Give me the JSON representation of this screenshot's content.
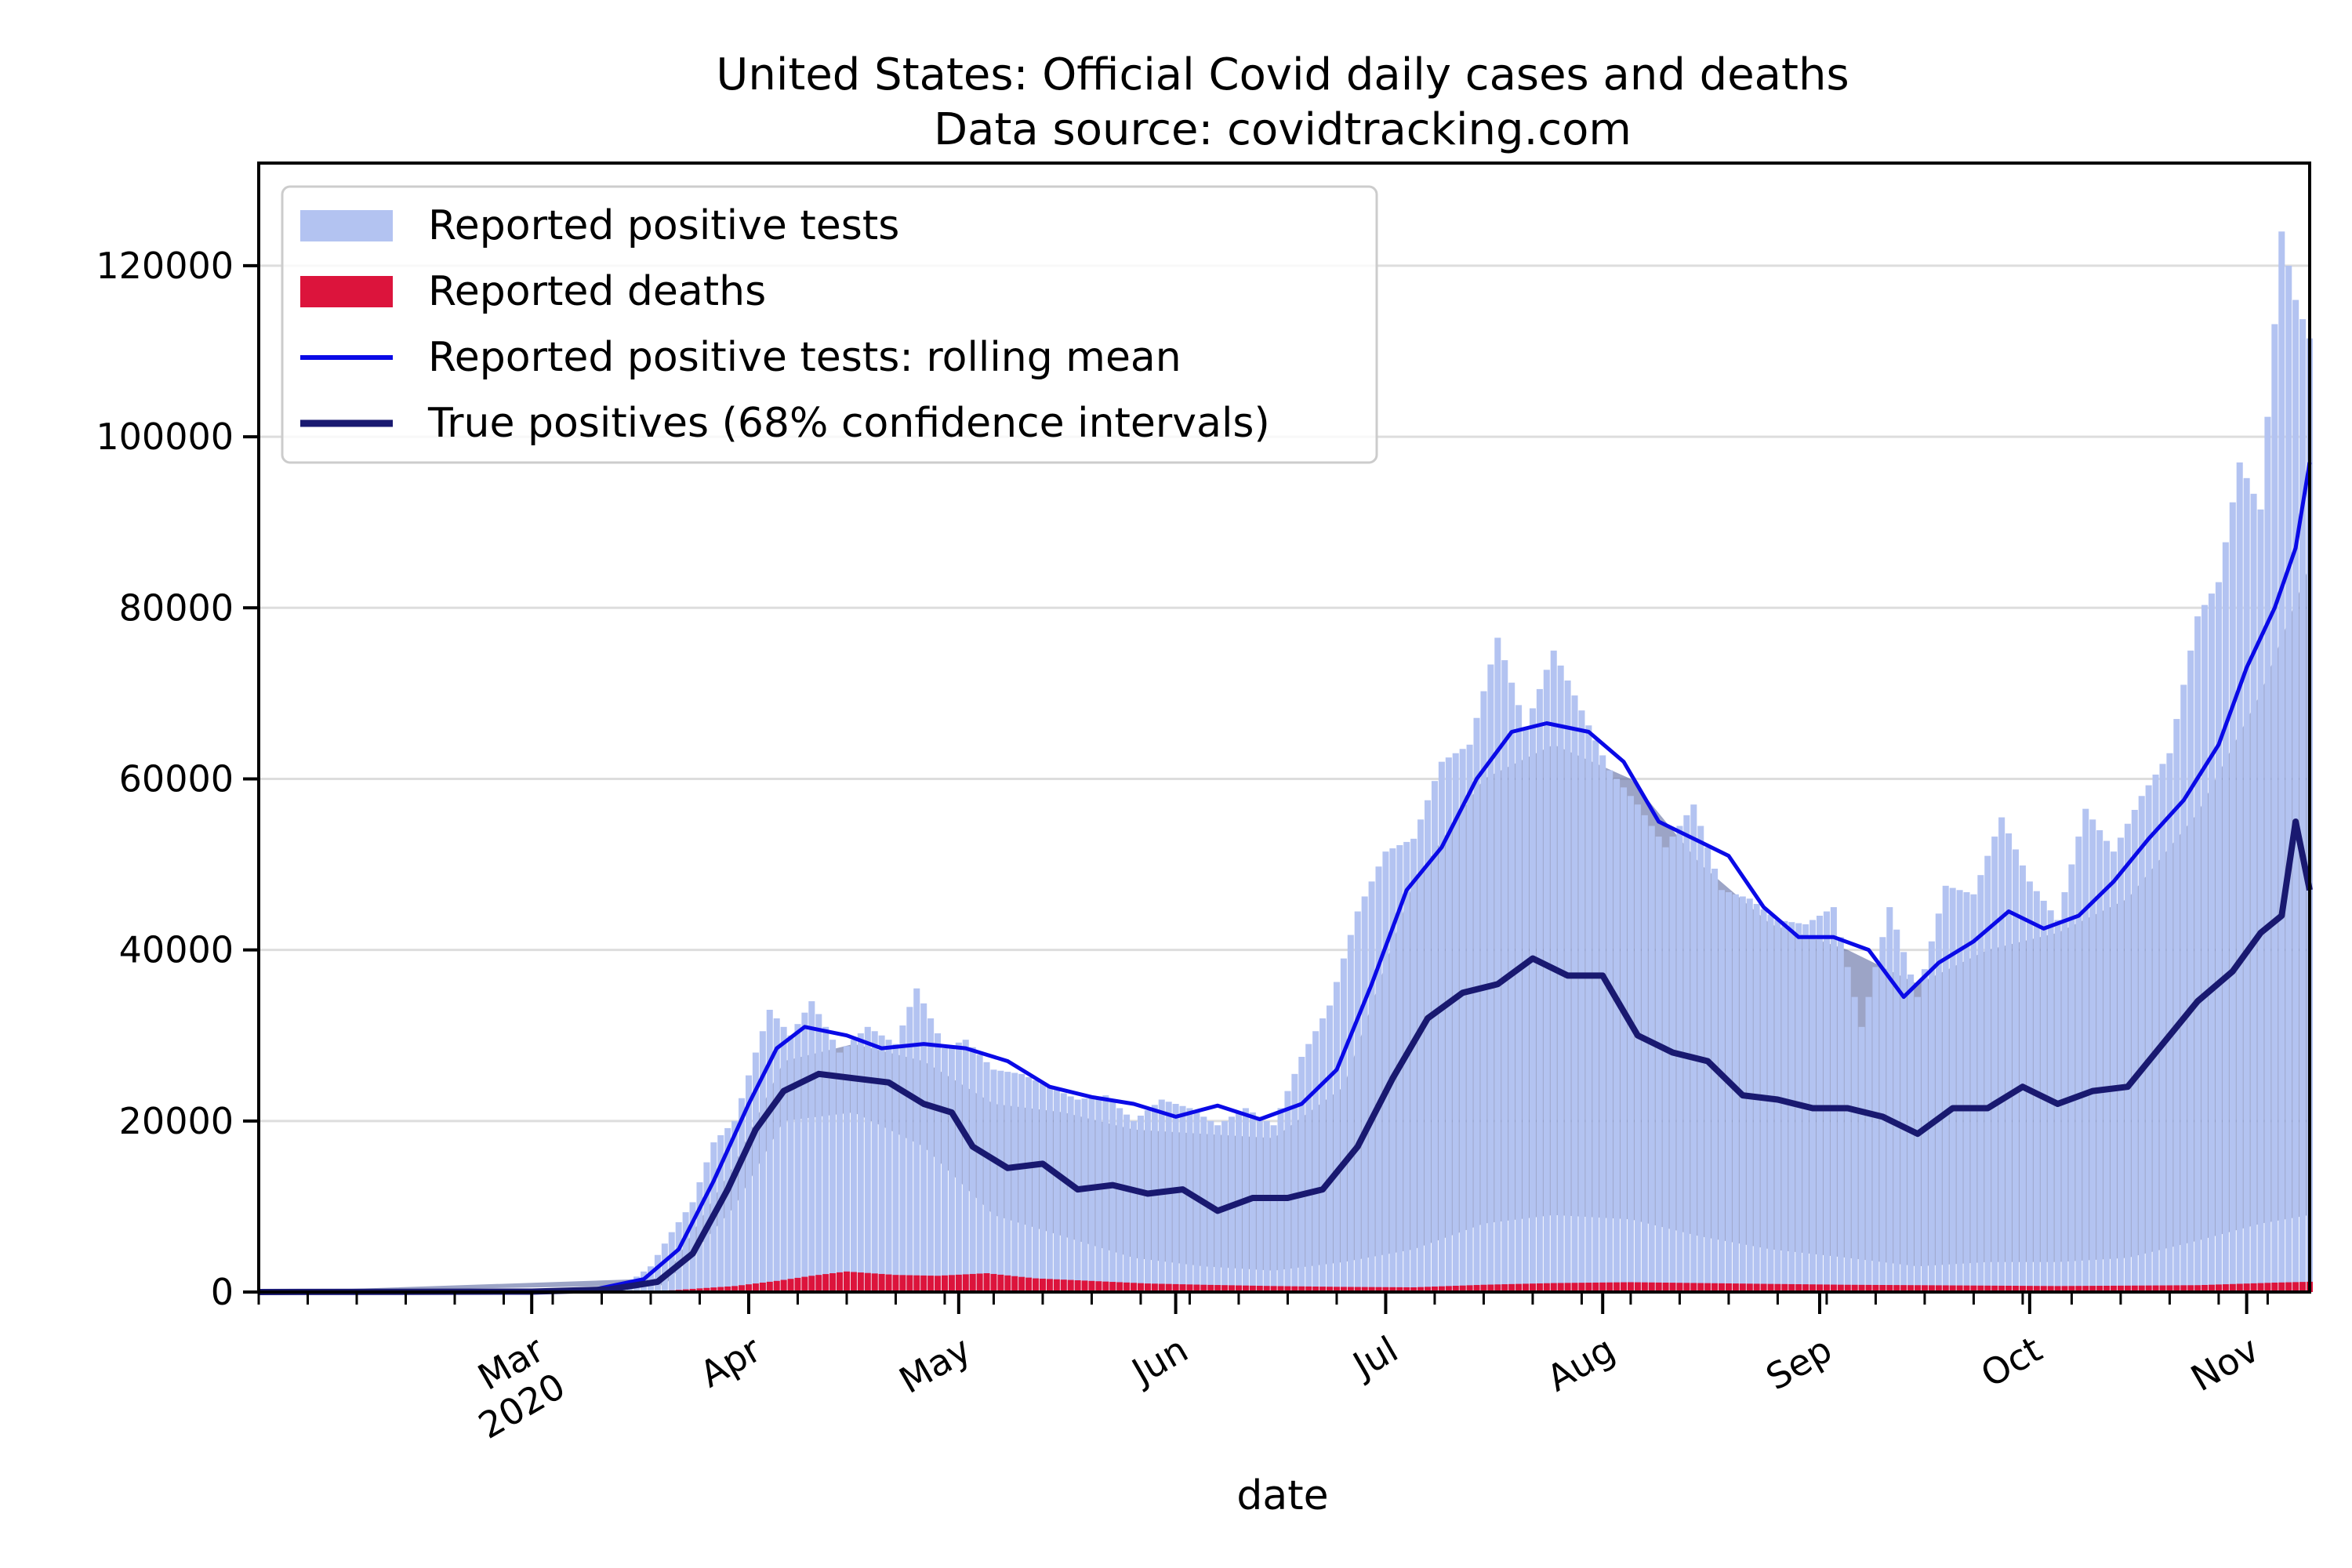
{
  "chart_data": {
    "type": "bar",
    "title": "United States: Official Covid daily cases and deaths",
    "subtitle": "Data source: covidtracking.com",
    "xlabel": "date",
    "ylabel": "",
    "ylim": [
      0,
      132000
    ],
    "xlim": [
      "2020-01-22",
      "2020-11-10"
    ],
    "grid": "horizontal",
    "legend_position": "top-left",
    "y_ticks": [
      0,
      20000,
      40000,
      60000,
      80000,
      100000,
      120000
    ],
    "x_ticks": [
      {
        "date": "2020-03-01",
        "label": "Mar",
        "year": "2020"
      },
      {
        "date": "2020-04-01",
        "label": "Apr",
        "year": ""
      },
      {
        "date": "2020-05-01",
        "label": "May",
        "year": ""
      },
      {
        "date": "2020-06-01",
        "label": "Jun",
        "year": ""
      },
      {
        "date": "2020-07-01",
        "label": "Jul",
        "year": ""
      },
      {
        "date": "2020-08-01",
        "label": "Aug",
        "year": ""
      },
      {
        "date": "2020-09-01",
        "label": "Sep",
        "year": ""
      },
      {
        "date": "2020-10-01",
        "label": "Oct",
        "year": ""
      },
      {
        "date": "2020-11-01",
        "label": "Nov",
        "year": ""
      }
    ],
    "colors": {
      "positive_bars": "#b3c3f1",
      "death_bars": "#dc143c",
      "rolling_mean": "#0a0ae6",
      "true_positives": "#191970",
      "ci_band": "#4a5a98"
    },
    "series": [
      {
        "name": "Reported positive tests",
        "kind": "bar",
        "points": [
          [
            "2020-03-01",
            0
          ],
          [
            "2020-03-10",
            300
          ],
          [
            "2020-03-15",
            1200
          ],
          [
            "2020-03-18",
            3000
          ],
          [
            "2020-03-21",
            7000
          ],
          [
            "2020-03-24",
            10500
          ],
          [
            "2020-03-27",
            17500
          ],
          [
            "2020-03-30",
            20000
          ],
          [
            "2020-04-02",
            28000
          ],
          [
            "2020-04-04",
            33000
          ],
          [
            "2020-04-07",
            30000
          ],
          [
            "2020-04-10",
            34000
          ],
          [
            "2020-04-14",
            28000
          ],
          [
            "2020-04-18",
            31000
          ],
          [
            "2020-04-22",
            29000
          ],
          [
            "2020-04-25",
            35500
          ],
          [
            "2020-04-29",
            28500
          ],
          [
            "2020-05-02",
            29500
          ],
          [
            "2020-05-06",
            26000
          ],
          [
            "2020-05-10",
            25500
          ],
          [
            "2020-05-14",
            24000
          ],
          [
            "2020-05-18",
            22500
          ],
          [
            "2020-05-22",
            23000
          ],
          [
            "2020-05-26",
            20000
          ],
          [
            "2020-05-30",
            22500
          ],
          [
            "2020-06-03",
            21500
          ],
          [
            "2020-06-07",
            19500
          ],
          [
            "2020-06-11",
            21500
          ],
          [
            "2020-06-15",
            19500
          ],
          [
            "2020-06-19",
            27500
          ],
          [
            "2020-06-23",
            33500
          ],
          [
            "2020-06-27",
            44500
          ],
          [
            "2020-07-01",
            51500
          ],
          [
            "2020-07-05",
            53000
          ],
          [
            "2020-07-09",
            62000
          ],
          [
            "2020-07-13",
            64000
          ],
          [
            "2020-07-17",
            76500
          ],
          [
            "2020-07-21",
            66000
          ],
          [
            "2020-07-25",
            75000
          ],
          [
            "2020-07-29",
            68000
          ],
          [
            "2020-08-02",
            61000
          ],
          [
            "2020-08-06",
            57000
          ],
          [
            "2020-08-10",
            52000
          ],
          [
            "2020-08-14",
            57000
          ],
          [
            "2020-08-18",
            47000
          ],
          [
            "2020-08-22",
            46000
          ],
          [
            "2020-08-26",
            43500
          ],
          [
            "2020-08-30",
            43000
          ],
          [
            "2020-09-03",
            45000
          ],
          [
            "2020-09-07",
            31000
          ],
          [
            "2020-09-11",
            45000
          ],
          [
            "2020-09-15",
            34500
          ],
          [
            "2020-09-19",
            47500
          ],
          [
            "2020-09-23",
            46500
          ],
          [
            "2020-09-27",
            55500
          ],
          [
            "2020-10-01",
            48000
          ],
          [
            "2020-10-05",
            43500
          ],
          [
            "2020-10-09",
            56500
          ],
          [
            "2020-10-13",
            51500
          ],
          [
            "2020-10-17",
            58000
          ],
          [
            "2020-10-21",
            63000
          ],
          [
            "2020-10-25",
            79000
          ],
          [
            "2020-10-28",
            83000
          ],
          [
            "2020-10-31",
            97000
          ],
          [
            "2020-11-03",
            91500
          ],
          [
            "2020-11-06",
            124000
          ],
          [
            "2020-11-08",
            116000
          ],
          [
            "2020-11-10",
            111500
          ]
        ]
      },
      {
        "name": "Reported deaths",
        "kind": "bar",
        "points": [
          [
            "2020-03-20",
            150
          ],
          [
            "2020-03-30",
            700
          ],
          [
            "2020-04-05",
            1300
          ],
          [
            "2020-04-10",
            1900
          ],
          [
            "2020-04-15",
            2400
          ],
          [
            "2020-04-22",
            2000
          ],
          [
            "2020-04-28",
            1900
          ],
          [
            "2020-05-05",
            2200
          ],
          [
            "2020-05-12",
            1600
          ],
          [
            "2020-05-20",
            1300
          ],
          [
            "2020-05-28",
            1000
          ],
          [
            "2020-06-05",
            850
          ],
          [
            "2020-06-15",
            700
          ],
          [
            "2020-06-25",
            600
          ],
          [
            "2020-07-05",
            550
          ],
          [
            "2020-07-15",
            850
          ],
          [
            "2020-07-25",
            1050
          ],
          [
            "2020-08-05",
            1150
          ],
          [
            "2020-08-15",
            1050
          ],
          [
            "2020-08-25",
            950
          ],
          [
            "2020-09-05",
            850
          ],
          [
            "2020-09-15",
            800
          ],
          [
            "2020-09-25",
            750
          ],
          [
            "2020-10-05",
            700
          ],
          [
            "2020-10-15",
            750
          ],
          [
            "2020-10-25",
            800
          ],
          [
            "2020-11-05",
            1100
          ],
          [
            "2020-11-10",
            1200
          ]
        ]
      },
      {
        "name": "Reported positive tests: rolling mean",
        "kind": "line",
        "points": [
          [
            "2020-01-22",
            0
          ],
          [
            "2020-03-01",
            50
          ],
          [
            "2020-03-10",
            300
          ],
          [
            "2020-03-17",
            1500
          ],
          [
            "2020-03-22",
            5000
          ],
          [
            "2020-03-27",
            13000
          ],
          [
            "2020-04-01",
            22000
          ],
          [
            "2020-04-05",
            28500
          ],
          [
            "2020-04-09",
            31000
          ],
          [
            "2020-04-15",
            30000
          ],
          [
            "2020-04-20",
            28500
          ],
          [
            "2020-04-26",
            29000
          ],
          [
            "2020-05-02",
            28500
          ],
          [
            "2020-05-08",
            27000
          ],
          [
            "2020-05-14",
            24000
          ],
          [
            "2020-05-20",
            22800
          ],
          [
            "2020-05-26",
            22000
          ],
          [
            "2020-06-01",
            20500
          ],
          [
            "2020-06-07",
            21800
          ],
          [
            "2020-06-13",
            20200
          ],
          [
            "2020-06-19",
            22000
          ],
          [
            "2020-06-24",
            26000
          ],
          [
            "2020-06-29",
            36000
          ],
          [
            "2020-07-04",
            47000
          ],
          [
            "2020-07-09",
            52000
          ],
          [
            "2020-07-14",
            60000
          ],
          [
            "2020-07-19",
            65500
          ],
          [
            "2020-07-24",
            66500
          ],
          [
            "2020-07-30",
            65500
          ],
          [
            "2020-08-04",
            62000
          ],
          [
            "2020-08-09",
            55000
          ],
          [
            "2020-08-14",
            53000
          ],
          [
            "2020-08-19",
            51000
          ],
          [
            "2020-08-24",
            45000
          ],
          [
            "2020-08-29",
            41500
          ],
          [
            "2020-09-03",
            41500
          ],
          [
            "2020-09-08",
            40000
          ],
          [
            "2020-09-13",
            34500
          ],
          [
            "2020-09-18",
            38500
          ],
          [
            "2020-09-23",
            41000
          ],
          [
            "2020-09-28",
            44500
          ],
          [
            "2020-10-03",
            42500
          ],
          [
            "2020-10-08",
            44000
          ],
          [
            "2020-10-13",
            48000
          ],
          [
            "2020-10-18",
            53000
          ],
          [
            "2020-10-23",
            57500
          ],
          [
            "2020-10-28",
            64000
          ],
          [
            "2020-11-01",
            73000
          ],
          [
            "2020-11-05",
            80000
          ],
          [
            "2020-11-08",
            87000
          ],
          [
            "2020-11-10",
            97000
          ]
        ]
      },
      {
        "name": "True positives (68% confidence intervals)",
        "kind": "line",
        "points": [
          [
            "2020-01-22",
            0
          ],
          [
            "2020-03-01",
            50
          ],
          [
            "2020-03-12",
            300
          ],
          [
            "2020-03-19",
            1200
          ],
          [
            "2020-03-24",
            4500
          ],
          [
            "2020-03-29",
            12000
          ],
          [
            "2020-04-02",
            19000
          ],
          [
            "2020-04-06",
            23500
          ],
          [
            "2020-04-11",
            25500
          ],
          [
            "2020-04-16",
            25000
          ],
          [
            "2020-04-21",
            24500
          ],
          [
            "2020-04-26",
            22000
          ],
          [
            "2020-04-30",
            21000
          ],
          [
            "2020-05-03",
            17000
          ],
          [
            "2020-05-08",
            14500
          ],
          [
            "2020-05-13",
            15000
          ],
          [
            "2020-05-18",
            12000
          ],
          [
            "2020-05-23",
            12500
          ],
          [
            "2020-05-28",
            11500
          ],
          [
            "2020-06-02",
            12000
          ],
          [
            "2020-06-07",
            9500
          ],
          [
            "2020-06-12",
            11000
          ],
          [
            "2020-06-17",
            11000
          ],
          [
            "2020-06-22",
            12000
          ],
          [
            "2020-06-27",
            17000
          ],
          [
            "2020-07-02",
            25000
          ],
          [
            "2020-07-07",
            32000
          ],
          [
            "2020-07-12",
            35000
          ],
          [
            "2020-07-17",
            36000
          ],
          [
            "2020-07-22",
            39000
          ],
          [
            "2020-07-27",
            37000
          ],
          [
            "2020-08-01",
            37000
          ],
          [
            "2020-08-06",
            30000
          ],
          [
            "2020-08-11",
            28000
          ],
          [
            "2020-08-16",
            27000
          ],
          [
            "2020-08-21",
            23000
          ],
          [
            "2020-08-26",
            22500
          ],
          [
            "2020-08-31",
            21500
          ],
          [
            "2020-09-05",
            21500
          ],
          [
            "2020-09-10",
            20500
          ],
          [
            "2020-09-15",
            18500
          ],
          [
            "2020-09-20",
            21500
          ],
          [
            "2020-09-25",
            21500
          ],
          [
            "2020-09-30",
            24000
          ],
          [
            "2020-10-05",
            22000
          ],
          [
            "2020-10-10",
            23500
          ],
          [
            "2020-10-15",
            24000
          ],
          [
            "2020-10-20",
            29000
          ],
          [
            "2020-10-25",
            34000
          ],
          [
            "2020-10-30",
            37500
          ],
          [
            "2020-11-03",
            42000
          ],
          [
            "2020-11-06",
            44000
          ],
          [
            "2020-11-08",
            55000
          ],
          [
            "2020-11-10",
            47000
          ]
        ]
      }
    ],
    "true_positives_ci": {
      "lower": [
        [
          "2020-01-22",
          0
        ],
        [
          "2020-03-20",
          800
        ],
        [
          "2020-03-30",
          10000
        ],
        [
          "2020-04-06",
          20000
        ],
        [
          "2020-04-16",
          21000
        ],
        [
          "2020-04-26",
          17000
        ],
        [
          "2020-05-06",
          9000
        ],
        [
          "2020-05-16",
          6500
        ],
        [
          "2020-05-26",
          4000
        ],
        [
          "2020-06-05",
          3000
        ],
        [
          "2020-06-15",
          2500
        ],
        [
          "2020-06-25",
          3500
        ],
        [
          "2020-07-05",
          5000
        ],
        [
          "2020-07-15",
          8000
        ],
        [
          "2020-07-25",
          9000
        ],
        [
          "2020-08-05",
          8500
        ],
        [
          "2020-08-15",
          6500
        ],
        [
          "2020-08-25",
          5000
        ],
        [
          "2020-09-05",
          4000
        ],
        [
          "2020-09-15",
          3000
        ],
        [
          "2020-09-25",
          3500
        ],
        [
          "2020-10-05",
          3500
        ],
        [
          "2020-10-15",
          4000
        ],
        [
          "2020-10-25",
          6000
        ],
        [
          "2020-11-03",
          8000
        ],
        [
          "2020-11-10",
          9000
        ]
      ],
      "upper": [
        [
          "2020-01-22",
          0
        ],
        [
          "2020-03-20",
          1600
        ],
        [
          "2020-03-30",
          15000
        ],
        [
          "2020-04-06",
          27000
        ],
        [
          "2020-04-16",
          29000
        ],
        [
          "2020-04-26",
          27000
        ],
        [
          "2020-05-06",
          22000
        ],
        [
          "2020-05-16",
          21000
        ],
        [
          "2020-05-26",
          19000
        ],
        [
          "2020-06-05",
          18500
        ],
        [
          "2020-06-15",
          18000
        ],
        [
          "2020-06-25",
          24000
        ],
        [
          "2020-07-05",
          48000
        ],
        [
          "2020-07-15",
          60000
        ],
        [
          "2020-07-25",
          64000
        ],
        [
          "2020-08-05",
          60000
        ],
        [
          "2020-08-15",
          50000
        ],
        [
          "2020-08-25",
          43000
        ],
        [
          "2020-09-05",
          40000
        ],
        [
          "2020-09-15",
          36000
        ],
        [
          "2020-09-25",
          40000
        ],
        [
          "2020-10-05",
          42000
        ],
        [
          "2020-10-15",
          46000
        ],
        [
          "2020-10-25",
          56000
        ],
        [
          "2020-11-03",
          70000
        ],
        [
          "2020-11-10",
          85000
        ]
      ]
    }
  }
}
